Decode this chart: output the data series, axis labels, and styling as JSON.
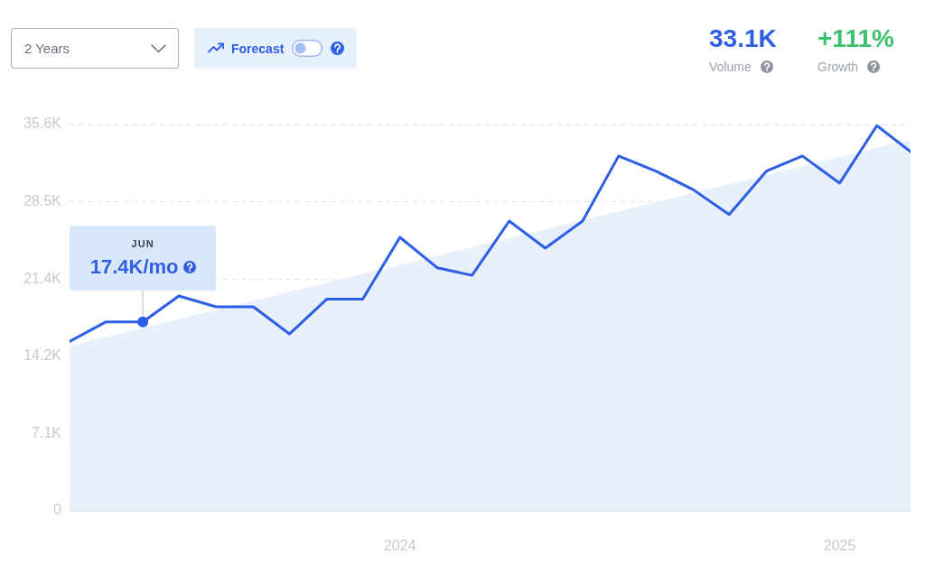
{
  "chart_data": {
    "type": "line",
    "x": [
      "2023-04",
      "2023-05",
      "2023-06",
      "2023-07",
      "2023-08",
      "2023-09",
      "2023-10",
      "2023-11",
      "2023-12",
      "2024-01",
      "2024-02",
      "2024-03",
      "2024-04",
      "2024-05",
      "2024-06",
      "2024-07",
      "2024-08",
      "2024-09",
      "2024-10",
      "2024-11",
      "2024-12",
      "2025-01",
      "2025-02",
      "2025-03"
    ],
    "xlim": [
      "2023-04",
      "2025-03"
    ],
    "xticks": [
      "2024",
      "2025"
    ],
    "ylim": [
      0,
      35600
    ],
    "yticks": [
      0,
      {
        "value": 7120,
        "label": "7.1K"
      },
      {
        "value": 14240,
        "label": "14.2K"
      },
      {
        "value": 21360,
        "label": "21.4K"
      },
      {
        "value": 28480,
        "label": "28.5K"
      },
      {
        "value": 35600,
        "label": "35.6K"
      }
    ],
    "series": [
      {
        "type": "line",
        "color": "#2d5fe6",
        "values": [
          15600,
          17400,
          17400,
          19800,
          18800,
          18800,
          16300,
          19500,
          19500,
          25200,
          22400,
          21700,
          26700,
          24200,
          26700,
          32700,
          31300,
          29600,
          27300,
          31300,
          32700,
          30200,
          35500,
          33100
        ]
      },
      {
        "type": "area",
        "color": "#e8f0fc",
        "x": [
          "2023-04",
          "2025-03"
        ],
        "values": [
          15200,
          34200
        ]
      }
    ],
    "grid": "y",
    "marker": "none",
    "annotations": [
      "2 Years",
      "Forecast",
      "33.1K",
      "Volume",
      "+111%",
      "Growth",
      "JUN",
      {
        "text": "17.4K/mo",
        "x": "2023-06",
        "y": 17400
      }
    ]
  }
}
